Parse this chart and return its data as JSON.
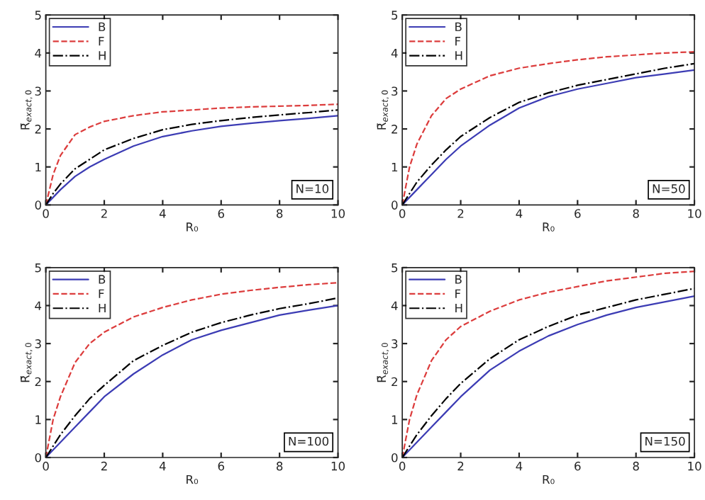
{
  "chart_data": [
    {
      "type": "line",
      "xlabel": "R₀",
      "ylabel": "R̄$_{exact,0}$",
      "annotations": [
        "N=10"
      ],
      "legend": "top left",
      "grid": false,
      "xlim": [
        0,
        10
      ],
      "ylim": [
        0,
        5
      ],
      "xticks": [
        0,
        2,
        4,
        6,
        8,
        10
      ],
      "yticks": [
        0,
        1,
        2,
        3,
        4,
        5
      ],
      "x": [
        0,
        0.25,
        0.5,
        1,
        1.5,
        2,
        3,
        4,
        5,
        6,
        7,
        8,
        9,
        10
      ],
      "series": [
        {
          "name": "B",
          "color": "#3c3cb4",
          "line_style": "solid",
          "values": [
            0,
            0.2,
            0.4,
            0.75,
            1.0,
            1.2,
            1.55,
            1.8,
            1.95,
            2.07,
            2.15,
            2.22,
            2.28,
            2.35
          ]
        },
        {
          "name": "F",
          "color": "#dc3c3c",
          "line_style": "dashed",
          "values": [
            0,
            0.8,
            1.3,
            1.85,
            2.05,
            2.2,
            2.35,
            2.45,
            2.5,
            2.55,
            2.58,
            2.6,
            2.62,
            2.65
          ]
        },
        {
          "name": "H",
          "color": "#000000",
          "line_style": "dashdot",
          "values": [
            0,
            0.3,
            0.55,
            0.95,
            1.2,
            1.45,
            1.75,
            1.98,
            2.12,
            2.22,
            2.3,
            2.37,
            2.43,
            2.5
          ]
        }
      ]
    },
    {
      "type": "line",
      "xlabel": "R₀",
      "ylabel": "R̄$_{exact,0}$",
      "annotations": [
        "N=50"
      ],
      "legend": "top left",
      "grid": false,
      "xlim": [
        0,
        10
      ],
      "ylim": [
        0,
        5
      ],
      "xticks": [
        0,
        2,
        4,
        6,
        8,
        10
      ],
      "yticks": [
        0,
        1,
        2,
        3,
        4,
        5
      ],
      "x": [
        0,
        0.25,
        0.5,
        1,
        1.5,
        2,
        3,
        4,
        5,
        6,
        7,
        8,
        9,
        10
      ],
      "series": [
        {
          "name": "B",
          "color": "#3c3cb4",
          "line_style": "solid",
          "values": [
            0,
            0.2,
            0.4,
            0.8,
            1.2,
            1.55,
            2.1,
            2.55,
            2.85,
            3.05,
            3.2,
            3.35,
            3.45,
            3.55
          ]
        },
        {
          "name": "F",
          "color": "#dc3c3c",
          "line_style": "dashed",
          "values": [
            0,
            1.0,
            1.6,
            2.35,
            2.8,
            3.05,
            3.4,
            3.6,
            3.72,
            3.82,
            3.9,
            3.95,
            4.0,
            4.03
          ]
        },
        {
          "name": "H",
          "color": "#000000",
          "line_style": "dashdot",
          "values": [
            0,
            0.3,
            0.6,
            1.05,
            1.45,
            1.8,
            2.3,
            2.7,
            2.95,
            3.15,
            3.3,
            3.45,
            3.6,
            3.72
          ]
        }
      ]
    },
    {
      "type": "line",
      "xlabel": "R₀",
      "ylabel": "R̄$_{exact,0}$",
      "annotations": [
        "N=100"
      ],
      "legend": "top left",
      "grid": false,
      "xlim": [
        0,
        10
      ],
      "ylim": [
        0,
        5
      ],
      "xticks": [
        0,
        2,
        4,
        6,
        8,
        10
      ],
      "yticks": [
        0,
        1,
        2,
        3,
        4,
        5
      ],
      "x": [
        0,
        0.25,
        0.5,
        1,
        1.5,
        2,
        3,
        4,
        5,
        6,
        7,
        8,
        9,
        10
      ],
      "series": [
        {
          "name": "B",
          "color": "#3c3cb4",
          "line_style": "solid",
          "values": [
            0,
            0.2,
            0.4,
            0.8,
            1.2,
            1.6,
            2.2,
            2.7,
            3.1,
            3.35,
            3.55,
            3.75,
            3.88,
            4.0
          ]
        },
        {
          "name": "F",
          "color": "#dc3c3c",
          "line_style": "dashed",
          "values": [
            0,
            1.0,
            1.6,
            2.5,
            3.0,
            3.3,
            3.7,
            3.95,
            4.15,
            4.3,
            4.4,
            4.48,
            4.55,
            4.6
          ]
        },
        {
          "name": "H",
          "color": "#000000",
          "line_style": "dashdot",
          "values": [
            0,
            0.3,
            0.6,
            1.1,
            1.55,
            1.9,
            2.55,
            2.95,
            3.3,
            3.55,
            3.75,
            3.92,
            4.05,
            4.2
          ]
        }
      ]
    },
    {
      "type": "line",
      "xlabel": "R₀",
      "ylabel": "R̄$_{exact,0}$",
      "annotations": [
        "N=150"
      ],
      "legend": "top left",
      "grid": false,
      "xlim": [
        0,
        10
      ],
      "ylim": [
        0,
        5
      ],
      "xticks": [
        0,
        2,
        4,
        6,
        8,
        10
      ],
      "yticks": [
        0,
        1,
        2,
        3,
        4,
        5
      ],
      "x": [
        0,
        0.25,
        0.5,
        1,
        1.5,
        2,
        3,
        4,
        5,
        6,
        7,
        8,
        9,
        10
      ],
      "series": [
        {
          "name": "B",
          "color": "#3c3cb4",
          "line_style": "solid",
          "values": [
            0,
            0.2,
            0.4,
            0.8,
            1.2,
            1.6,
            2.3,
            2.8,
            3.2,
            3.5,
            3.75,
            3.95,
            4.1,
            4.25
          ]
        },
        {
          "name": "F",
          "color": "#dc3c3c",
          "line_style": "dashed",
          "values": [
            0,
            1.0,
            1.65,
            2.55,
            3.1,
            3.45,
            3.85,
            4.15,
            4.35,
            4.5,
            4.65,
            4.75,
            4.85,
            4.9
          ]
        },
        {
          "name": "H",
          "color": "#000000",
          "line_style": "dashdot",
          "values": [
            0,
            0.3,
            0.6,
            1.1,
            1.55,
            1.95,
            2.6,
            3.1,
            3.45,
            3.75,
            3.95,
            4.15,
            4.3,
            4.45
          ]
        }
      ]
    }
  ]
}
